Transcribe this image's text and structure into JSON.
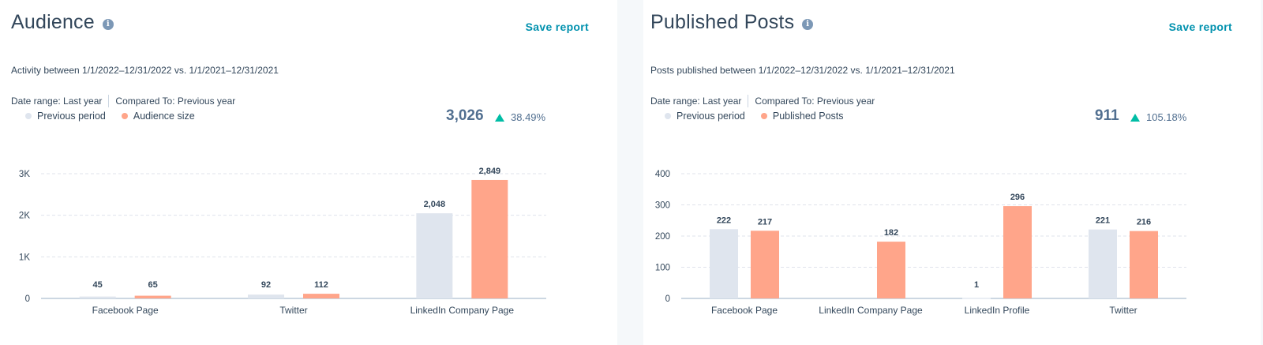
{
  "panels": [
    {
      "title": "Audience",
      "save_label": "Save report",
      "subtitle": "Activity between 1/1/2022–12/31/2022 vs. 1/1/2021–12/31/2021",
      "date_range": "Date range: Last year",
      "compared_to": "Compared To: Previous year",
      "legend": [
        "Previous period",
        "Audience size"
      ],
      "total": "3,026",
      "change": "38.49%"
    },
    {
      "title": "Published Posts",
      "save_label": "Save report",
      "subtitle": "Posts published between 1/1/2022–12/31/2022 vs. 1/1/2021–12/31/2021",
      "date_range": "Date range: Last year",
      "compared_to": "Compared To: Previous year",
      "legend": [
        "Previous period",
        "Published Posts"
      ],
      "total": "911",
      "change": "105.18%"
    }
  ],
  "colors": {
    "previous": "#dfe5ee",
    "current": "#ffa58a",
    "accent": "#0091ae",
    "up": "#00bda5"
  },
  "chart_data": [
    {
      "type": "bar",
      "categories": [
        "Facebook Page",
        "Twitter",
        "LinkedIn Company Page"
      ],
      "series": [
        {
          "name": "Previous period",
          "values": [
            45,
            92,
            2048
          ],
          "labels": [
            "45",
            "92",
            "2,048"
          ]
        },
        {
          "name": "Audience size",
          "values": [
            65,
            112,
            2849
          ],
          "labels": [
            "65",
            "112",
            "2,849"
          ]
        }
      ],
      "yticks": [
        0,
        1000,
        2000,
        3000
      ],
      "ytick_labels": [
        "0",
        "1K",
        "2K",
        "3K"
      ],
      "ylim": [
        0,
        3000
      ],
      "grid": true,
      "legend": "top-left"
    },
    {
      "type": "bar",
      "categories": [
        "Facebook Page",
        "LinkedIn Company Page",
        "LinkedIn Profile",
        "Twitter"
      ],
      "series": [
        {
          "name": "Previous period",
          "values": [
            222,
            0,
            1,
            221
          ],
          "labels": [
            "222",
            "",
            "1",
            "221"
          ]
        },
        {
          "name": "Published Posts",
          "values": [
            217,
            182,
            296,
            216
          ],
          "labels": [
            "217",
            "182",
            "296",
            "216"
          ]
        }
      ],
      "yticks": [
        0,
        100,
        200,
        300,
        400
      ],
      "ytick_labels": [
        "0",
        "100",
        "200",
        "300",
        "400"
      ],
      "ylim": [
        0,
        400
      ],
      "grid": true,
      "legend": "top-left"
    }
  ]
}
